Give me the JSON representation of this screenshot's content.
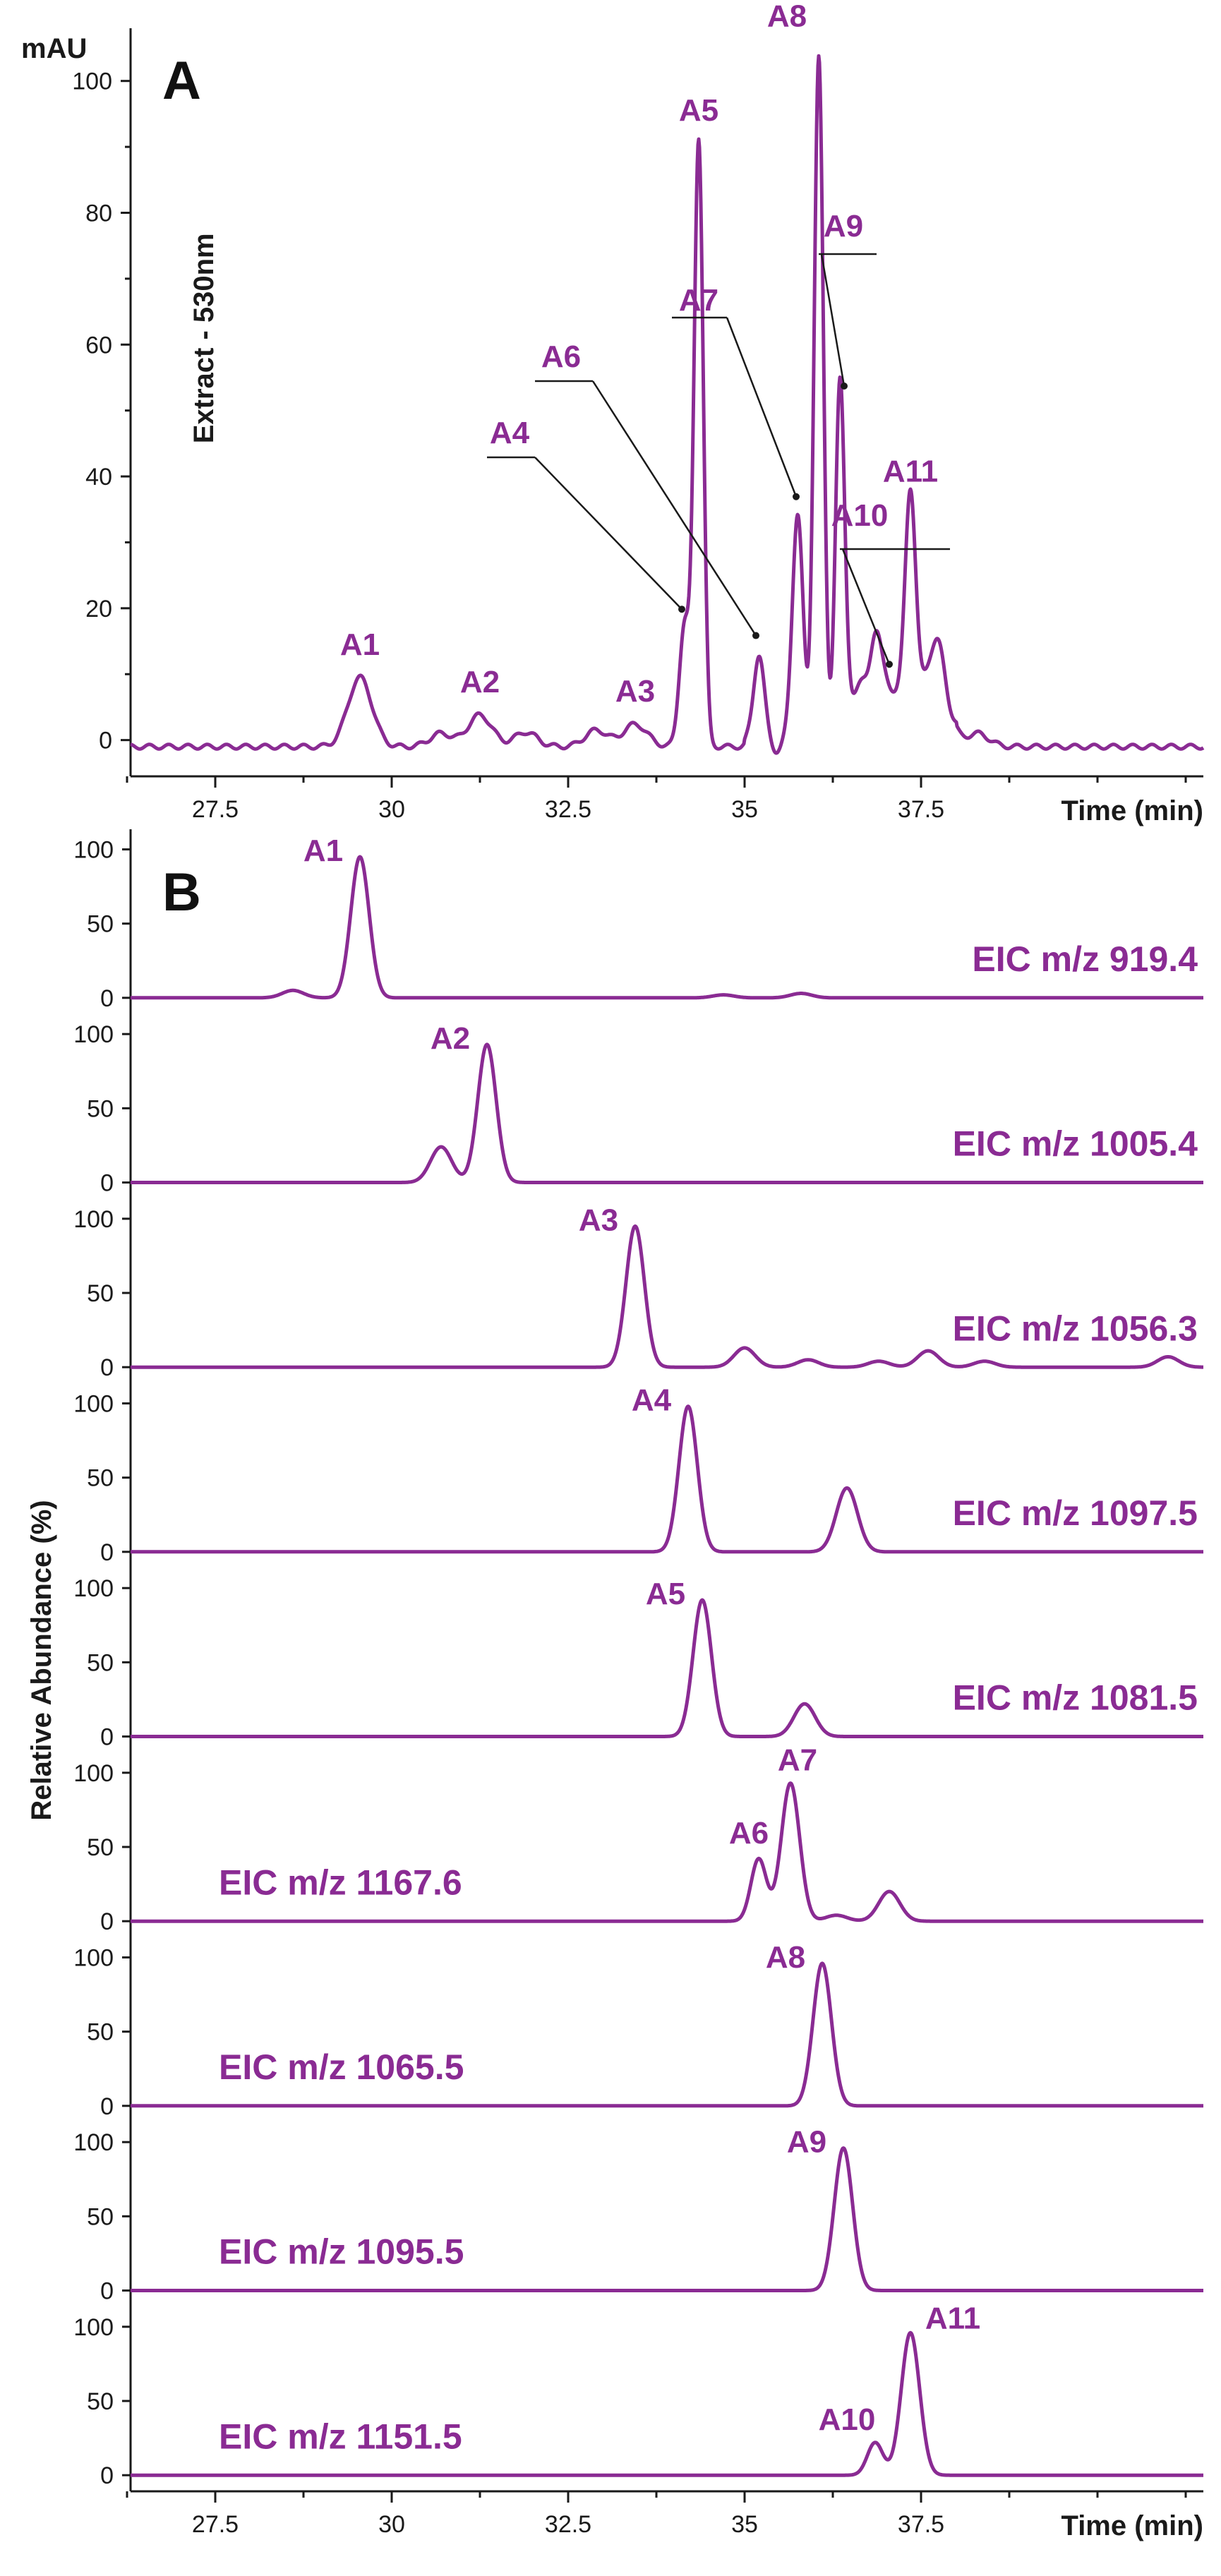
{
  "colors": {
    "trace": "#8a2b93",
    "axis": "#1a1a1a"
  },
  "chart_data": [
    {
      "type": "line",
      "panel_label": "A",
      "ylabel": "Extract - 530nm",
      "yunit": "mAU",
      "xlabel": "Time (min)",
      "xlim": [
        26.3,
        41.5
      ],
      "ylim": [
        -5.5,
        108
      ],
      "xticks": [
        27.5,
        30,
        32.5,
        35,
        37.5
      ],
      "xtick_labels": [
        "27.5",
        "30",
        "32.5",
        "35",
        "37.5"
      ],
      "yticks": [
        0,
        20,
        40,
        60,
        80,
        100
      ],
      "ytick_labels": [
        "0",
        "20",
        "40",
        "60",
        "80",
        "100"
      ],
      "baseline": -1,
      "peaks": [
        {
          "label": "A1",
          "x": 29.55,
          "y": 9.5
        },
        {
          "label": "A2",
          "x": 31.25,
          "y": 3.8
        },
        {
          "label": "A3",
          "x": 33.45,
          "y": 2.4
        },
        {
          "label": "A4",
          "x": 34.15,
          "y": 17.5
        },
        {
          "label": "A5",
          "x": 34.35,
          "y": 91
        },
        {
          "label": "A6",
          "x": 35.2,
          "y": 13.5
        },
        {
          "label": "A7",
          "x": 35.75,
          "y": 35
        },
        {
          "label": "A8",
          "x": 36.05,
          "y": 104
        },
        {
          "label": "A9",
          "x": 36.35,
          "y": 52
        },
        {
          "label": "A10",
          "x": 36.85,
          "y": 10
        },
        {
          "label": "A11",
          "x": 37.35,
          "y": 36
        }
      ],
      "minor_peaks": [
        {
          "x": 30.7,
          "y": 1
        },
        {
          "x": 31.9,
          "y": 1.2
        },
        {
          "x": 32.9,
          "y": 1.5
        },
        {
          "x": 36.6,
          "y": 8
        },
        {
          "x": 37.05,
          "y": 8.5
        },
        {
          "x": 37.7,
          "y": 15
        },
        {
          "x": 38.3,
          "y": 1
        }
      ]
    },
    {
      "type": "line",
      "panel_label": "B",
      "ylabel": "Relative  Abundance  (%)",
      "xlabel": "Time (min)",
      "xlim": [
        26.3,
        41.5
      ],
      "ylim": [
        -8,
        105
      ],
      "xticks": [
        27.5,
        30,
        32.5,
        35,
        37.5
      ],
      "xtick_labels": [
        "27.5",
        "30",
        "32.5",
        "35",
        "37.5"
      ],
      "yticks": [
        0,
        50,
        100
      ],
      "ytick_labels": [
        "0",
        "50",
        "100"
      ],
      "series": [
        {
          "name": "EIC m/z 919.4",
          "label_side": "right",
          "peaks": [
            {
              "label": "A1",
              "x": 29.55,
              "y": 95
            },
            {
              "x": 28.6,
              "y": 5
            },
            {
              "x": 35.8,
              "y": 3
            },
            {
              "x": 34.7,
              "y": 2
            }
          ]
        },
        {
          "name": "EIC m/z 1005.4",
          "label_side": "right",
          "peaks": [
            {
              "label": "A2",
              "x": 31.35,
              "y": 93
            },
            {
              "x": 30.7,
              "y": 24
            }
          ]
        },
        {
          "name": "EIC m/z 1056.3",
          "label_side": "right",
          "peaks": [
            {
              "label": "A3",
              "x": 33.45,
              "y": 95
            },
            {
              "x": 35.0,
              "y": 13
            },
            {
              "x": 35.9,
              "y": 5
            },
            {
              "x": 37.6,
              "y": 11
            },
            {
              "x": 38.4,
              "y": 4
            },
            {
              "x": 41.0,
              "y": 7
            },
            {
              "x": 36.9,
              "y": 4
            }
          ]
        },
        {
          "name": "EIC m/z 1097.5",
          "label_side": "right",
          "peaks": [
            {
              "label": "A4",
              "x": 34.2,
              "y": 98
            },
            {
              "x": 36.45,
              "y": 43
            }
          ]
        },
        {
          "name": "EIC m/z 1081.5",
          "label_side": "right",
          "peaks": [
            {
              "label": "A5",
              "x": 34.4,
              "y": 92
            },
            {
              "x": 35.85,
              "y": 22
            }
          ]
        },
        {
          "name": "EIC m/z 1167.6",
          "label_side": "left",
          "peaks": [
            {
              "label": "A6",
              "x": 35.2,
              "y": 42
            },
            {
              "label": "A7",
              "x": 35.65,
              "y": 93
            },
            {
              "x": 37.05,
              "y": 20
            },
            {
              "x": 36.3,
              "y": 4
            }
          ]
        },
        {
          "name": "EIC m/z 1065.5",
          "label_side": "left",
          "peaks": [
            {
              "label": "A8",
              "x": 36.1,
              "y": 96
            }
          ]
        },
        {
          "name": "EIC m/z 1095.5",
          "label_side": "left",
          "peaks": [
            {
              "label": "A9",
              "x": 36.4,
              "y": 96
            }
          ]
        },
        {
          "name": "EIC m/z 1151.5",
          "label_side": "left",
          "peaks": [
            {
              "label": "A10",
              "x": 36.85,
              "y": 22
            },
            {
              "label": "A11",
              "x": 37.35,
              "y": 96
            }
          ]
        }
      ]
    }
  ]
}
